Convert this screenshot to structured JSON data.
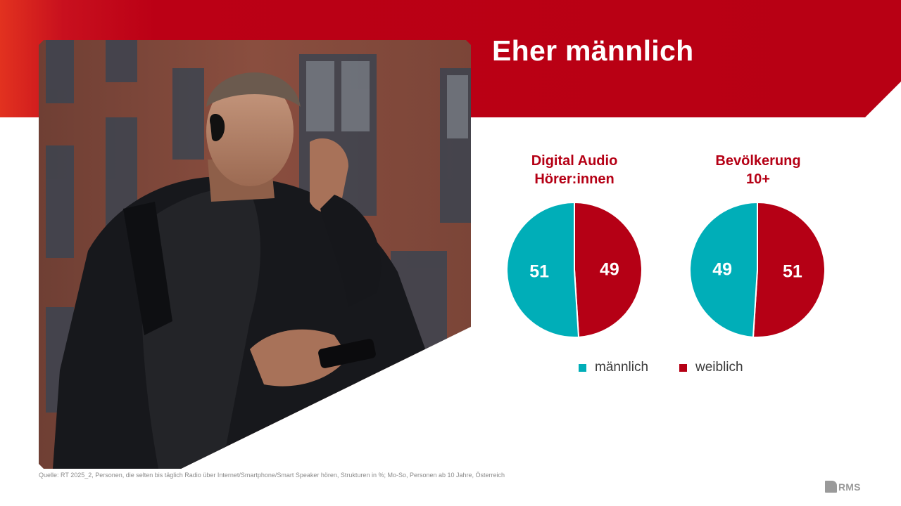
{
  "slide": {
    "title": "Eher männlich",
    "source": "Quelle: RT 2025_2, Personen, die selten bis täglich Radio über Internet/Smartphone/Smart Speaker hören, Strukturen in %; Mo-So, Personen ab 10 Jahre, Österreich",
    "logo_text": "RMS"
  },
  "colors": {
    "maennlich": "#00aeb8",
    "weiblich": "#b50015",
    "header_red": "#bb0015"
  },
  "legend": [
    {
      "label": "männlich",
      "color": "#00aeb8"
    },
    {
      "label": "weiblich",
      "color": "#b50015"
    }
  ],
  "chart_data": [
    {
      "type": "pie",
      "title": [
        "Digital Audio",
        "Hörer:innen"
      ],
      "slices": [
        {
          "label": "männlich",
          "value": 51,
          "color": "#00aeb8"
        },
        {
          "label": "weiblich",
          "value": 49,
          "color": "#b50015"
        }
      ]
    },
    {
      "type": "pie",
      "title": [
        "Bevölkerung",
        "10+"
      ],
      "slices": [
        {
          "label": "männlich",
          "value": 49,
          "color": "#00aeb8"
        },
        {
          "label": "weiblich",
          "value": 51,
          "color": "#b50015"
        }
      ]
    }
  ]
}
